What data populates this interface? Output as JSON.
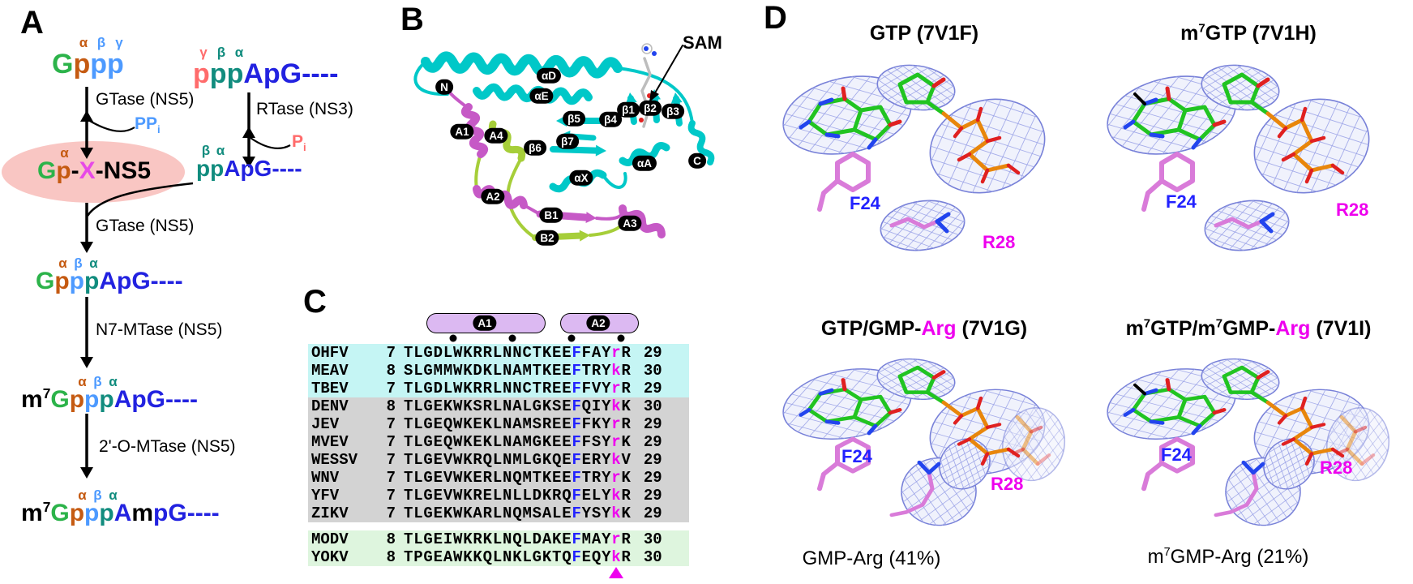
{
  "colors": {
    "green": "#2CB34A",
    "orange": "#C55A11",
    "lblue": "#4D9AFF",
    "teal": "#118C7E",
    "blue": "#2222E0",
    "salmon": "#FF6B6B",
    "magenta": "#E749E7",
    "black": "#000000",
    "seqF": "#2222FF",
    "seqRK": "#EE00EE",
    "pink": "#F9C6C3",
    "mesh": "#7780D8",
    "hatch": "#99A1E6",
    "meshFill": "#F0F2FC",
    "stickGreen": "#21C421",
    "stickOrange": "#E8860B",
    "stickRed": "#E02020",
    "stickBlue": "#2244EE",
    "violet": "#D97BD9",
    "grayStick": "#BDBDBD",
    "cyan": "#00C8C8",
    "helixMagenta": "#C659C6",
    "strandGreen": "#A6CE39",
    "cylFill": "#DCB9F2",
    "bgCyan": "#C5F5F4",
    "bgGray": "#D3D3D3",
    "bgGreen": "#DEF5DE"
  },
  "panels": {
    "A": {
      "label": "A",
      "molecules": {
        "gtp": {
          "main": [
            {
              "t": "G",
              "c": "green"
            },
            {
              "t": "p",
              "c": "orange"
            },
            {
              "t": "p",
              "c": "lblue"
            },
            {
              "t": "p",
              "c": "lblue"
            }
          ],
          "greek": [
            {
              "t": "α",
              "c": "orange"
            },
            {
              "t": "β",
              "c": "lblue"
            },
            {
              "t": "γ",
              "c": "lblue"
            }
          ]
        },
        "pppapg": {
          "main": [
            {
              "t": "p",
              "c": "salmon"
            },
            {
              "t": "p",
              "c": "teal"
            },
            {
              "t": "p",
              "c": "teal"
            },
            {
              "t": "ApG----",
              "c": "blue"
            }
          ],
          "greek": [
            {
              "t": "γ",
              "c": "salmon"
            },
            {
              "t": "β",
              "c": "teal"
            },
            {
              "t": "α",
              "c": "teal"
            }
          ]
        },
        "gpx": {
          "main": [
            {
              "t": "G",
              "c": "green"
            },
            {
              "t": "p",
              "c": "orange"
            },
            {
              "t": "-",
              "c": "black"
            },
            {
              "t": "X",
              "c": "magenta"
            },
            {
              "t": "-NS5",
              "c": "black"
            }
          ],
          "greek": [
            {
              "t": "α",
              "c": "orange"
            }
          ]
        },
        "ppapg": {
          "main": [
            {
              "t": "p",
              "c": "teal"
            },
            {
              "t": "p",
              "c": "teal"
            },
            {
              "t": "ApG----",
              "c": "blue"
            }
          ],
          "greek": [
            {
              "t": "β",
              "c": "teal"
            },
            {
              "t": "α",
              "c": "teal"
            }
          ]
        },
        "gpppapg": {
          "main": [
            {
              "t": "G",
              "c": "green"
            },
            {
              "t": "p",
              "c": "orange"
            },
            {
              "t": "p",
              "c": "lblue"
            },
            {
              "t": "p",
              "c": "teal"
            },
            {
              "t": "ApG----",
              "c": "blue"
            }
          ],
          "greek": [
            {
              "t": "α",
              "c": "orange"
            },
            {
              "t": "β",
              "c": "lblue"
            },
            {
              "t": "α",
              "c": "teal"
            }
          ]
        },
        "m7gpppapg": {
          "main": [
            {
              "t": "m",
              "c": "black"
            },
            {
              "t": "7",
              "c": "black",
              "sup": true
            },
            {
              "t": "G",
              "c": "green"
            },
            {
              "t": "p",
              "c": "orange"
            },
            {
              "t": "p",
              "c": "lblue"
            },
            {
              "t": "p",
              "c": "teal"
            },
            {
              "t": "ApG----",
              "c": "blue"
            }
          ],
          "greek": [
            {
              "t": "α",
              "c": "orange"
            },
            {
              "t": "β",
              "c": "lblue"
            },
            {
              "t": "α",
              "c": "teal"
            }
          ]
        },
        "m7gpppampg": {
          "main": [
            {
              "t": "m",
              "c": "black"
            },
            {
              "t": "7",
              "c": "black",
              "sup": true
            },
            {
              "t": "G",
              "c": "green"
            },
            {
              "t": "p",
              "c": "orange"
            },
            {
              "t": "p",
              "c": "lblue"
            },
            {
              "t": "p",
              "c": "teal"
            },
            {
              "t": "A",
              "c": "blue"
            },
            {
              "t": "m",
              "c": "black"
            },
            {
              "t": "pG----",
              "c": "blue"
            }
          ],
          "greek": [
            {
              "t": "α",
              "c": "orange"
            },
            {
              "t": "β",
              "c": "lblue"
            },
            {
              "t": "α",
              "c": "teal"
            }
          ]
        }
      },
      "enzymes": {
        "gtase1": "GTase (NS5)",
        "rtase": "RTase (NS3)",
        "gtase2": "GTase (NS5)",
        "n7mtase": "N7-MTase (NS5)",
        "omtase": "2'-O-MTase (NS5)"
      },
      "byproducts": {
        "ppi": [
          {
            "t": "PP",
            "c": "lblue"
          },
          {
            "t": "i",
            "c": "lblue",
            "sub": true
          }
        ],
        "pi": [
          {
            "t": "P",
            "c": "salmon"
          },
          {
            "t": "i",
            "c": "salmon",
            "sub": true
          }
        ]
      }
    },
    "B": {
      "label": "B",
      "sam": "SAM",
      "labels": [
        "N",
        "A1",
        "A4",
        "αD",
        "αE",
        "β5",
        "β6",
        "β7",
        "β4",
        "β1",
        "β2",
        "β3",
        "αA",
        "αX",
        "A2",
        "B1",
        "B2",
        "A3",
        "C"
      ]
    },
    "C": {
      "label": "C",
      "helices": [
        "A1",
        "A2"
      ],
      "groups": [
        {
          "bg": "#C5F5F4",
          "rows": [
            {
              "name": "OHFV",
              "start": "7",
              "seq": "TLGDLWKRRLNNCTKEEFFAYrR",
              "end": "29"
            },
            {
              "name": "MEAV",
              "start": "8",
              "seq": "SLGMMWKDKLNAMTKEEFTRYkR",
              "end": "30"
            },
            {
              "name": "TBEV",
              "start": "7",
              "seq": "TLGDLWKRRLNNCTREEFFVYrR",
              "end": "29"
            }
          ]
        },
        {
          "bg": "#D3D3D3",
          "rows": [
            {
              "name": "DENV",
              "start": "8",
              "seq": "TLGEKWKSRLNALGKSEFQIYkK",
              "end": "30"
            },
            {
              "name": "JEV",
              "start": "7",
              "seq": "TLGEQWKEKLNAMSREEFFKYrR",
              "end": "29"
            },
            {
              "name": "MVEV",
              "start": "7",
              "seq": "TLGEQWKEKLNAMGKEEFFSYrK",
              "end": "29"
            },
            {
              "name": "WESSV",
              "start": "7",
              "seq": "TLGEVWKRQLNMLGKQEFERYkV",
              "end": "29"
            },
            {
              "name": "WNV",
              "start": "7",
              "seq": "TLGEVWKERLNQMTKEEFTRYrK",
              "end": "29"
            },
            {
              "name": "YFV",
              "start": "7",
              "seq": "TLGEVWKRELNLLDKRQFELYkR",
              "end": "29"
            },
            {
              "name": "ZIKV",
              "start": "7",
              "seq": "TLGEKWKARLNQMSALEFYSYkK",
              "end": "29"
            }
          ]
        },
        {
          "bg": "#DEF5DE",
          "rows": [
            {
              "name": "MODV",
              "start": "8",
              "seq": "TLGEIWKRKLNQLDAKEFMAYrR",
              "end": "30"
            },
            {
              "name": "YOKV",
              "start": "8",
              "seq": "TPGEAWKKQLNKLGKTQFEQYkR",
              "end": "30"
            }
          ]
        }
      ]
    },
    "D": {
      "label": "D",
      "quadrants": [
        {
          "title": [
            {
              "t": "GTP (7V1F)"
            }
          ],
          "f24": "F24",
          "r28": "R28"
        },
        {
          "title": [
            {
              "t": "m"
            },
            {
              "t": "7",
              "sup": true
            },
            {
              "t": "GTP (7V1H)"
            }
          ],
          "f24": "F24",
          "r28": "R28"
        },
        {
          "title": [
            {
              "t": "GTP/GMP-"
            },
            {
              "t": "Arg",
              "c": "seqRK"
            },
            {
              "t": " (7V1G)"
            }
          ],
          "f24": "F24",
          "r28": "R28",
          "caption": [
            {
              "t": "GMP-Arg (41%)"
            }
          ]
        },
        {
          "title": [
            {
              "t": "m"
            },
            {
              "t": "7",
              "sup": true
            },
            {
              "t": "GTP/m"
            },
            {
              "t": "7",
              "sup": true
            },
            {
              "t": "GMP-"
            },
            {
              "t": "Arg",
              "c": "seqRK"
            },
            {
              "t": " (7V1I)"
            }
          ],
          "f24": "F24",
          "r28": "R28",
          "caption": [
            {
              "t": "m"
            },
            {
              "t": "7",
              "sup": true
            },
            {
              "t": "GMP-Arg (21%)"
            }
          ]
        }
      ]
    }
  }
}
